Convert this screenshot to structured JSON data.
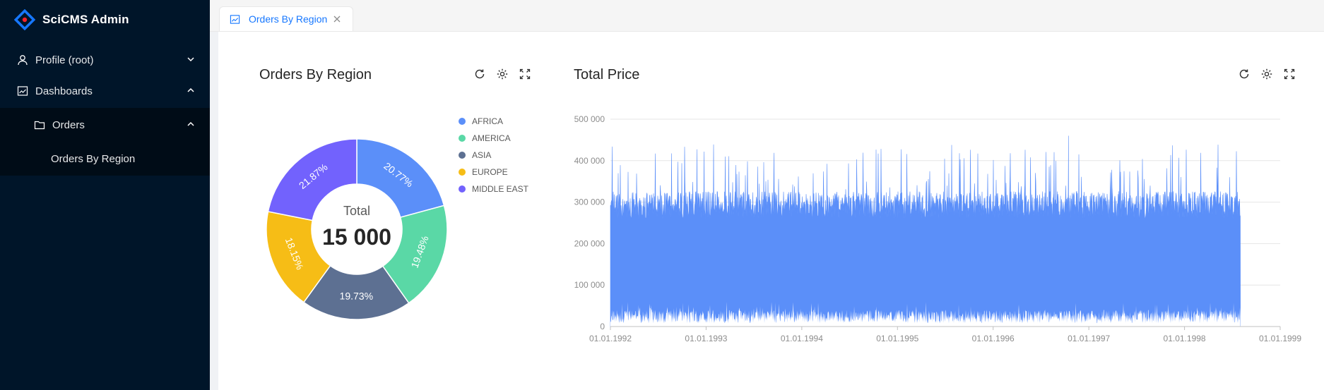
{
  "app": {
    "name": "SciCMS Admin"
  },
  "sidebar": {
    "items": [
      {
        "label": "Profile (root)"
      },
      {
        "label": "Dashboards"
      },
      {
        "label": "Orders"
      },
      {
        "label": "Orders By Region"
      }
    ]
  },
  "tabs": [
    {
      "label": "Orders By Region"
    }
  ],
  "panels": {
    "left": {
      "title": "Orders By Region"
    },
    "right": {
      "title": "Total Price"
    }
  },
  "colors": {
    "AFRICA": "#5b8ff9",
    "AMERICA": "#5ad8a6",
    "ASIA": "#5d7092",
    "EUROPE": "#f6bd16",
    "MIDDLE EAST": "#7262fd",
    "sidebar": "#001529",
    "accent": "#1677ff"
  },
  "chart_data": [
    {
      "type": "pie",
      "title": "Orders By Region",
      "center_label": "Total",
      "center_value": "15 000",
      "slices": [
        {
          "name": "AFRICA",
          "value": 20.77,
          "label": "20.77%"
        },
        {
          "name": "AMERICA",
          "value": 19.48,
          "label": "19.48%"
        },
        {
          "name": "ASIA",
          "value": 19.73,
          "label": "19.73%"
        },
        {
          "name": "EUROPE",
          "value": 18.15,
          "label": "18.15%"
        },
        {
          "name": "MIDDLE EAST",
          "value": 21.87,
          "label": "21.87%"
        }
      ],
      "legend_position": "right"
    },
    {
      "type": "area",
      "title": "Total Price",
      "x_range": [
        "01.01.1992",
        "01.01.1999"
      ],
      "x_ticks": [
        "01.01.1992",
        "01.01.1993",
        "01.01.1994",
        "01.01.1995",
        "01.01.1996",
        "01.01.1997",
        "01.01.1998",
        "01.01.1999"
      ],
      "data_end": "1998-08-02",
      "ylim": [
        0,
        500000
      ],
      "y_ticks": [
        "0",
        "100 000",
        "200 000",
        "300 000",
        "400 000",
        "500 000"
      ],
      "typical_high": 320000,
      "typical_low": 25000,
      "max_value": 460000,
      "grid": true
    }
  ]
}
